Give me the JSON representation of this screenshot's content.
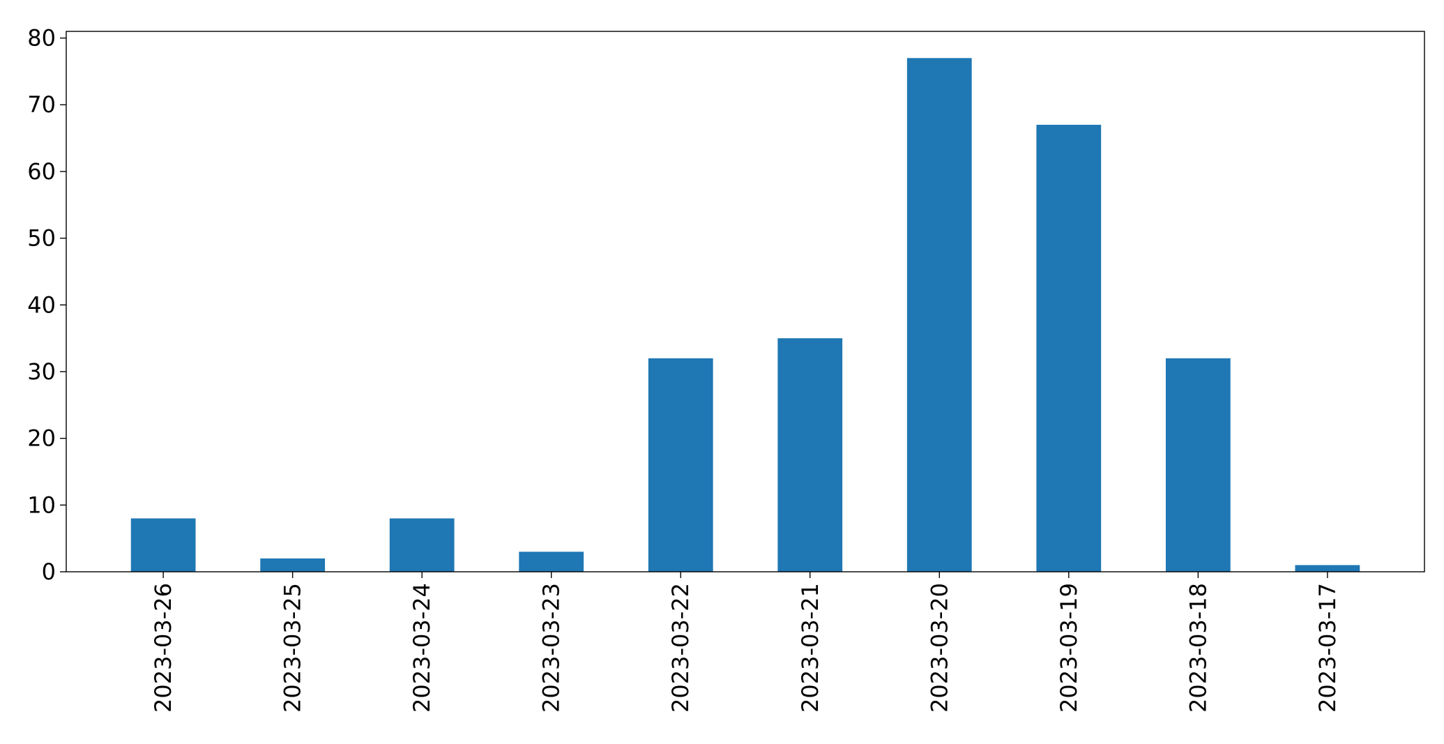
{
  "chart_data": {
    "type": "bar",
    "categories": [
      "2023-03-26",
      "2023-03-25",
      "2023-03-24",
      "2023-03-23",
      "2023-03-22",
      "2023-03-21",
      "2023-03-20",
      "2023-03-19",
      "2023-03-18",
      "2023-03-17"
    ],
    "values": [
      8,
      2,
      8,
      3,
      32,
      35,
      77,
      67,
      32,
      1
    ],
    "ylim": [
      0,
      81
    ],
    "yticks": [
      0,
      10,
      20,
      30,
      40,
      50,
      60,
      70,
      80
    ],
    "title": "",
    "xlabel": "",
    "ylabel": "",
    "grid": false,
    "legend": "none",
    "bar_color": "#1f77b4"
  }
}
